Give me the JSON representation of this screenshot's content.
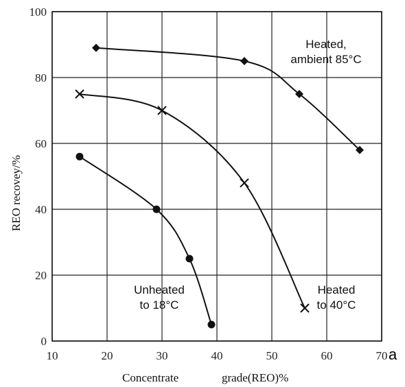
{
  "chart_data": {
    "type": "scatter",
    "title": "",
    "xlabel_left": "Concentrate",
    "xlabel_right": "grade(REO)%",
    "ylabel": "REO recovey/%",
    "xlim": [
      10,
      70
    ],
    "ylim": [
      0,
      100
    ],
    "xticks": [
      10,
      20,
      30,
      40,
      50,
      60,
      70
    ],
    "yticks": [
      0,
      20,
      40,
      60,
      80,
      100
    ],
    "grid": true,
    "panel_label": "a",
    "series": [
      {
        "marker": "diamond",
        "label_lines": [
          "Heated,",
          "ambient 85°C"
        ],
        "x": [
          18,
          45,
          55,
          66
        ],
        "y": [
          89,
          85,
          75,
          58
        ]
      },
      {
        "marker": "cross",
        "label_lines": [
          "Heated",
          "to 40°C"
        ],
        "x": [
          15,
          30,
          45,
          56
        ],
        "y": [
          75,
          70,
          48,
          10
        ]
      },
      {
        "marker": "circle",
        "label_lines": [
          "Unheated",
          "to 18°C"
        ],
        "x": [
          15,
          29,
          35,
          39
        ],
        "y": [
          56,
          40,
          25,
          5
        ]
      }
    ]
  }
}
